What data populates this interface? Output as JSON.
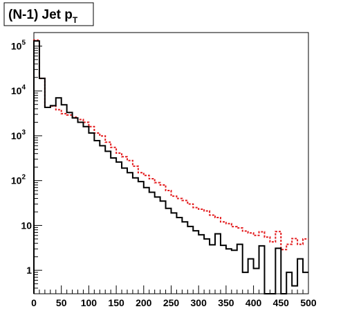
{
  "chart_data": {
    "type": "line",
    "title": {
      "main": "(N-1) Jet p",
      "subscript": "T"
    },
    "xlabel": "",
    "ylabel": "",
    "xlim": [
      0,
      500
    ],
    "ylim": [
      0.3,
      200000
    ],
    "y_scale": "log",
    "grid": false,
    "bin_width": 10,
    "x_ticks": [
      0,
      50,
      100,
      150,
      200,
      250,
      300,
      350,
      400,
      450,
      500
    ],
    "x_tick_labels": [
      "0",
      "50",
      "100",
      "150",
      "200",
      "250",
      "300",
      "350",
      "400",
      "450",
      "500"
    ],
    "y_ticks": [
      {
        "value": 1,
        "label": "1"
      },
      {
        "value": 10,
        "label": "10"
      },
      {
        "value": 100,
        "label": "10",
        "exp": "2"
      },
      {
        "value": 1000,
        "label": "10",
        "exp": "3"
      },
      {
        "value": 10000,
        "label": "10",
        "exp": "4"
      },
      {
        "value": 100000,
        "label": "10",
        "exp": "5"
      }
    ],
    "series": [
      {
        "color": "#000000",
        "style": "solid",
        "values": [
          130000,
          19000,
          4300,
          4700,
          7000,
          4900,
          3300,
          2500,
          2000,
          1600,
          1150,
          780,
          600,
          450,
          320,
          260,
          190,
          150,
          115,
          95,
          70,
          55,
          43,
          35,
          24,
          19,
          15,
          12,
          9.5,
          7.6,
          6.2,
          5.0,
          3.7,
          6.5,
          3.6,
          3.0,
          2.8,
          3.8,
          0.9,
          1.8,
          1.1,
          3.5,
          0.3,
          0.3,
          3.1,
          0.3,
          0.9,
          0.45,
          1.8,
          0.9
        ]
      },
      {
        "color": "#e31a1c",
        "style": "dashed",
        "values": [
          135000,
          19000,
          4300,
          4600,
          3800,
          3100,
          2900,
          2600,
          2300,
          2000,
          1600,
          1150,
          990,
          720,
          550,
          410,
          340,
          280,
          210,
          150,
          130,
          110,
          90,
          80,
          60,
          45,
          40,
          36,
          30,
          25,
          23,
          21,
          17,
          15,
          12,
          11,
          9.4,
          8.8,
          7.5,
          6.8,
          6.0,
          7.2,
          5.5,
          4.3,
          7.3,
          2.9,
          3.8,
          5.1,
          3.8,
          5.0
        ]
      }
    ]
  }
}
